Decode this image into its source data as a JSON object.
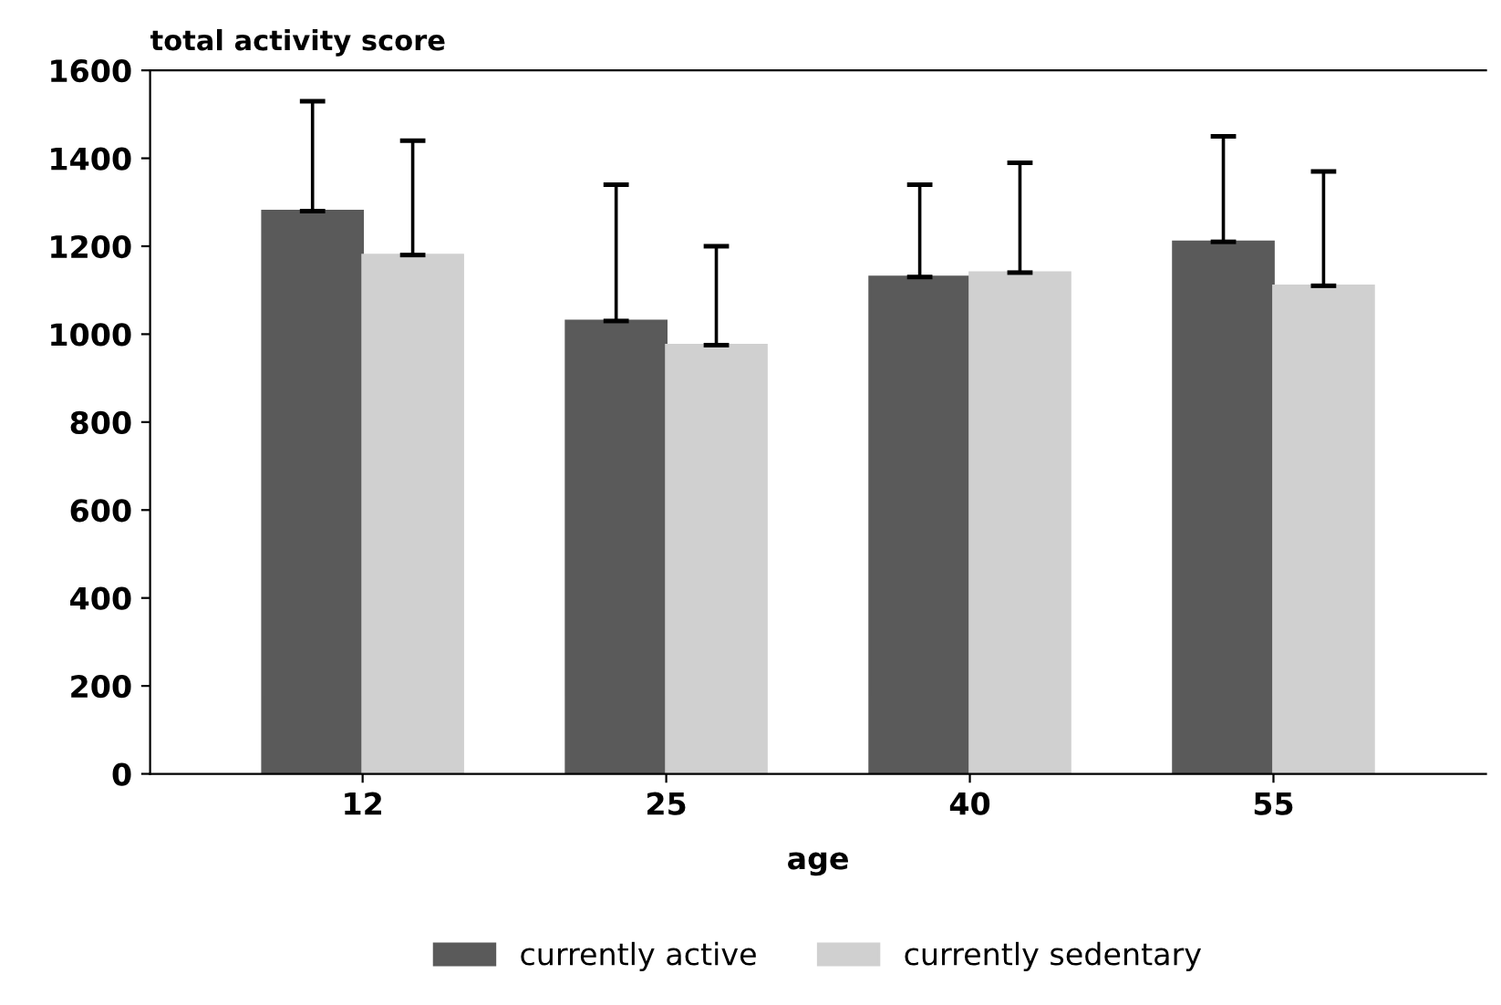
{
  "chart_data": {
    "type": "bar",
    "ylabel": "total activity score",
    "xlabel": "age",
    "categories": [
      "12",
      "25",
      "40",
      "55"
    ],
    "series": [
      {
        "name": "currently active",
        "color": "#5a5a5a",
        "values": [
          1280,
          1030,
          1130,
          1210
        ],
        "errors": [
          [
            1280,
            1530
          ],
          [
            1030,
            1340
          ],
          [
            1130,
            1340
          ],
          [
            1210,
            1450
          ]
        ]
      },
      {
        "name": "currently sedentary",
        "color": "#d0d0d0",
        "values": [
          1180,
          975,
          1140,
          1110
        ],
        "errors": [
          [
            1180,
            1440
          ],
          [
            975,
            1200
          ],
          [
            1140,
            1390
          ],
          [
            1110,
            1370
          ]
        ]
      }
    ],
    "ylim": [
      0,
      1600
    ],
    "yticks": [
      0,
      200,
      400,
      600,
      800,
      1000,
      1200,
      1400,
      1600
    ],
    "grid": false,
    "legend": "bottom"
  }
}
